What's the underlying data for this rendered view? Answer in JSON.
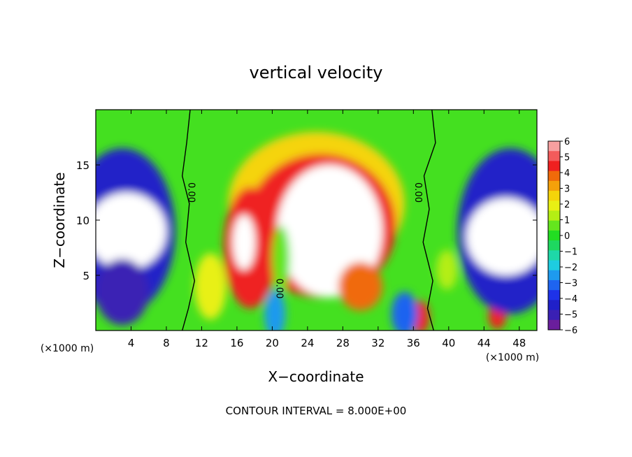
{
  "chart_data": {
    "type": "heatmap",
    "title": "vertical velocity",
    "xlabel": "X−coordinate",
    "ylabel": "Z−coordinate",
    "x_unit_left": "(×1000 m)",
    "x_unit_right": "(×1000 m)",
    "footer": "CONTOUR INTERVAL = 8.000E+00",
    "xlim": [
      0,
      50
    ],
    "ylim": [
      0,
      20
    ],
    "x_ticks": [
      4,
      8,
      12,
      16,
      20,
      24,
      28,
      32,
      36,
      40,
      44,
      48
    ],
    "y_ticks": [
      5,
      10,
      15
    ],
    "colorbar": {
      "ticks": [
        "6",
        "5",
        "4",
        "3",
        "2",
        "1",
        "0",
        "−1",
        "−2",
        "−3",
        "−4",
        "−5",
        "−6"
      ],
      "range": [
        -6,
        6
      ],
      "colors": [
        "#f7a0a0",
        "#f35b5b",
        "#ef2020",
        "#f06a0a",
        "#f5a10a",
        "#f5d40a",
        "#e8f014",
        "#b4ee14",
        "#64e61e",
        "#22dd22",
        "#1ed860",
        "#1ed8a8",
        "#1ecce0",
        "#1e9aee",
        "#1e64f0",
        "#1e32e8",
        "#2020c8",
        "#3a20b4",
        "#6a1e9c"
      ]
    },
    "contour_labels": [
      {
        "text": "0.00",
        "x": 10.5,
        "z": 12.5,
        "rotate": 90
      },
      {
        "text": "0.00",
        "x": 36.2,
        "z": 12.5,
        "rotate": 90
      },
      {
        "text": "0.00",
        "x": 20.5,
        "z": 3.8,
        "rotate": 90
      }
    ],
    "blobs": [
      {
        "x": 25,
        "z": 11.5,
        "rx": 10,
        "ry": 6.5,
        "v": 2.5
      },
      {
        "x": 25.5,
        "z": 9.5,
        "rx": 8.5,
        "ry": 6.5,
        "v": 4.5
      },
      {
        "x": 26.5,
        "z": 9,
        "rx": 6,
        "ry": 6,
        "v": 6.5
      },
      {
        "x": 17.5,
        "z": 7.5,
        "rx": 3,
        "ry": 5.5,
        "v": 5
      },
      {
        "x": 16.8,
        "z": 8,
        "rx": 1.3,
        "ry": 2.5,
        "v": 6.5
      },
      {
        "x": 13,
        "z": 4,
        "rx": 1.8,
        "ry": 3,
        "v": 2
      },
      {
        "x": 30,
        "z": 4,
        "rx": 2.5,
        "ry": 2.2,
        "v": 4
      },
      {
        "x": 36.8,
        "z": 1.2,
        "rx": 1,
        "ry": 1.5,
        "v": 4.5
      },
      {
        "x": 45.5,
        "z": 1.3,
        "rx": 1,
        "ry": 1.2,
        "v": 4.5
      },
      {
        "x": 39.8,
        "z": 5.5,
        "rx": 1.2,
        "ry": 1.8,
        "v": 1.5
      },
      {
        "x": 20.3,
        "z": 1.5,
        "rx": 1.2,
        "ry": 2.2,
        "v": -2.5
      },
      {
        "x": 35,
        "z": 1.5,
        "rx": 1.5,
        "ry": 2,
        "v": -3
      },
      {
        "x": 21,
        "z": 6.5,
        "rx": 1,
        "ry": 3,
        "v": 1
      },
      {
        "x": 3,
        "z": 9,
        "rx": 6,
        "ry": 7.5,
        "v": -4.5
      },
      {
        "x": 3.5,
        "z": 9,
        "rx": 4.5,
        "ry": 3.5,
        "v": -7.5
      },
      {
        "x": 47,
        "z": 9,
        "rx": 6,
        "ry": 7.5,
        "v": -4.5
      },
      {
        "x": 46.5,
        "z": 8.5,
        "rx": 4.5,
        "ry": 3.5,
        "v": -7.5
      },
      {
        "x": 3,
        "z": 3.5,
        "rx": 3,
        "ry": 3,
        "v": -5
      }
    ],
    "contour_lines_zero": [
      [
        [
          10.7,
          20
        ],
        [
          10.3,
          17
        ],
        [
          9.8,
          14
        ],
        [
          10.6,
          11.5
        ],
        [
          10.2,
          8
        ],
        [
          11.2,
          4.5
        ],
        [
          10.5,
          2
        ],
        [
          9.8,
          0
        ]
      ],
      [
        [
          38.1,
          20
        ],
        [
          38.5,
          17
        ],
        [
          37.2,
          14
        ],
        [
          37.8,
          11
        ],
        [
          37.1,
          8
        ],
        [
          38.2,
          4.5
        ],
        [
          37.6,
          2
        ],
        [
          38.3,
          0
        ]
      ]
    ]
  }
}
